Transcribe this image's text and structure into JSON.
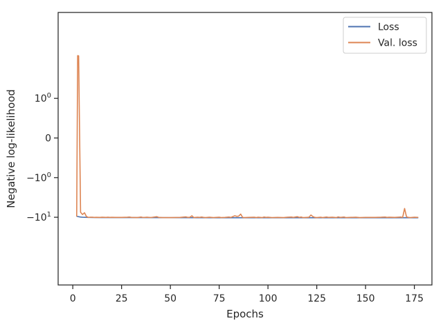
{
  "chart_data": {
    "type": "line",
    "title": "",
    "xlabel": "Epochs",
    "ylabel": "Negative log-likelihood",
    "xlim": [
      -7.5,
      184
    ],
    "x_ticks": [
      {
        "value": 0,
        "label": "0"
      },
      {
        "value": 25,
        "label": "25"
      },
      {
        "value": 50,
        "label": "50"
      },
      {
        "value": 75,
        "label": "75"
      },
      {
        "value": 100,
        "label": "100"
      },
      {
        "value": 125,
        "label": "125"
      },
      {
        "value": 150,
        "label": "150"
      },
      {
        "value": 175,
        "label": "175"
      }
    ],
    "y_scale": "symlog",
    "y_ticks": [
      {
        "value": 1,
        "label": "10",
        "exp": "0"
      },
      {
        "value": 0,
        "label": "0",
        "exp": ""
      },
      {
        "value": -1,
        "label": "−10",
        "exp": "0"
      },
      {
        "value": -10,
        "label": "−10",
        "exp": "1"
      }
    ],
    "grid": false,
    "legend": "top-right",
    "series": [
      {
        "name": "Loss",
        "color": "#4c72b0",
        "points": [
          [
            2,
            -9.4
          ],
          [
            3,
            -9.7
          ],
          [
            4,
            -9.9
          ],
          [
            5,
            -10.0
          ],
          [
            6,
            -10.05
          ],
          [
            8,
            -10.1
          ],
          [
            10,
            -10.15
          ],
          [
            15,
            -10.2
          ],
          [
            20,
            -10.2
          ],
          [
            30,
            -10.22
          ],
          [
            50,
            -10.25
          ],
          [
            75,
            -10.27
          ],
          [
            100,
            -10.28
          ],
          [
            125,
            -10.29
          ],
          [
            150,
            -10.3
          ],
          [
            177,
            -10.3
          ]
        ]
      },
      {
        "name": "Val. loss",
        "color": "#dd8452",
        "points": [
          [
            2,
            -9.6
          ],
          [
            2.5,
            12
          ],
          [
            3,
            11.8
          ],
          [
            4,
            -7.5
          ],
          [
            5,
            -8.5
          ],
          [
            6,
            -7.7
          ],
          [
            7,
            -9.6
          ],
          [
            8,
            -10.1
          ],
          [
            9,
            -10.0
          ],
          [
            10,
            -9.95
          ],
          [
            11,
            -10.1
          ],
          [
            12,
            -10.05
          ],
          [
            14,
            -10.1
          ],
          [
            15,
            -10.0
          ],
          [
            17,
            -10.1
          ],
          [
            18,
            -10.0
          ],
          [
            19,
            -10.1
          ],
          [
            20,
            -10.05
          ],
          [
            22,
            -10.1
          ],
          [
            25,
            -10.1
          ],
          [
            28,
            -10.0
          ],
          [
            29,
            -9.9
          ],
          [
            30,
            -10.1
          ],
          [
            33,
            -10.2
          ],
          [
            35,
            -9.9
          ],
          [
            36,
            -10.15
          ],
          [
            38,
            -10.0
          ],
          [
            40,
            -10.15
          ],
          [
            43,
            -9.7
          ],
          [
            44,
            -10.1
          ],
          [
            46,
            -10.2
          ],
          [
            50,
            -10.2
          ],
          [
            55,
            -10.1
          ],
          [
            58,
            -9.8
          ],
          [
            59,
            -10.1
          ],
          [
            60,
            -10.0
          ],
          [
            61,
            -9.2
          ],
          [
            62,
            -10.2
          ],
          [
            64,
            -10.0
          ],
          [
            65,
            -10.1
          ],
          [
            66,
            -9.9
          ],
          [
            67,
            -10.1
          ],
          [
            68,
            -10.2
          ],
          [
            70,
            -10.0
          ],
          [
            72,
            -10.2
          ],
          [
            75,
            -10.0
          ],
          [
            76,
            -10.2
          ],
          [
            78,
            -10.1
          ],
          [
            80,
            -9.9
          ],
          [
            81,
            -10.1
          ],
          [
            82,
            -9.6
          ],
          [
            83,
            -9.2
          ],
          [
            84,
            -9.5
          ],
          [
            85,
            -9.4
          ],
          [
            86,
            -8.3
          ],
          [
            87,
            -10.1
          ],
          [
            88,
            -10.2
          ],
          [
            90,
            -10.1
          ],
          [
            93,
            -10.0
          ],
          [
            94,
            -10.2
          ],
          [
            95,
            -10.0
          ],
          [
            97,
            -10.2
          ],
          [
            98,
            -9.9
          ],
          [
            99,
            -10.1
          ],
          [
            100,
            -10.0
          ],
          [
            102,
            -10.2
          ],
          [
            105,
            -10.1
          ],
          [
            108,
            -10.2
          ],
          [
            110,
            -10.0
          ],
          [
            112,
            -9.9
          ],
          [
            113,
            -10.1
          ],
          [
            115,
            -9.7
          ],
          [
            116,
            -10.1
          ],
          [
            117,
            -9.9
          ],
          [
            118,
            -10.2
          ],
          [
            120,
            -10.1
          ],
          [
            121,
            -10.0
          ],
          [
            122,
            -8.8
          ],
          [
            123,
            -9.6
          ],
          [
            124,
            -10.1
          ],
          [
            125,
            -10.2
          ],
          [
            127,
            -10.0
          ],
          [
            128,
            -10.2
          ],
          [
            130,
            -9.9
          ],
          [
            131,
            -10.1
          ],
          [
            133,
            -10.0
          ],
          [
            135,
            -10.2
          ],
          [
            136,
            -9.8
          ],
          [
            137,
            -10.1
          ],
          [
            138,
            -10.0
          ],
          [
            139,
            -9.9
          ],
          [
            140,
            -10.2
          ],
          [
            142,
            -10.1
          ],
          [
            145,
            -10.0
          ],
          [
            147,
            -10.2
          ],
          [
            150,
            -10.1
          ],
          [
            155,
            -10.1
          ],
          [
            158,
            -10.0
          ],
          [
            160,
            -9.9
          ],
          [
            161,
            -10.1
          ],
          [
            162,
            -10.0
          ],
          [
            165,
            -10.1
          ],
          [
            168,
            -9.9
          ],
          [
            169,
            -10.1
          ],
          [
            170,
            -6.0
          ],
          [
            171,
            -9.8
          ],
          [
            172,
            -10.1
          ],
          [
            173,
            -10.2
          ],
          [
            175,
            -10.0
          ],
          [
            177,
            -10.1
          ]
        ]
      }
    ]
  }
}
